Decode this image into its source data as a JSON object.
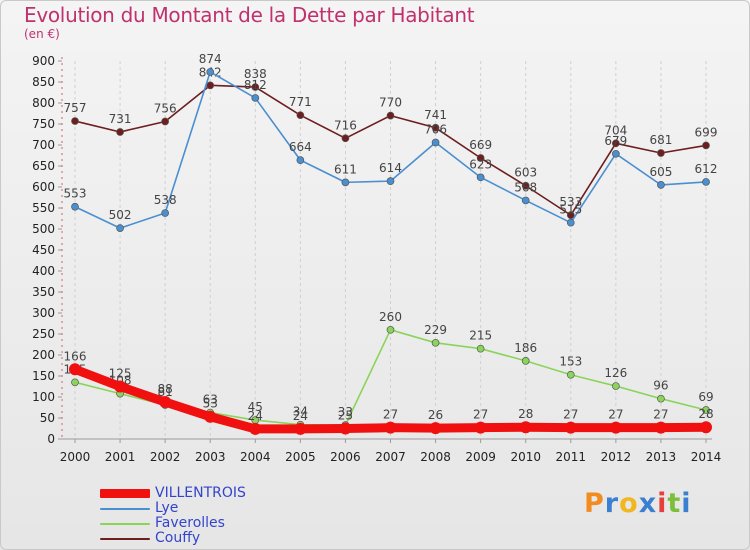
{
  "title": "Evolution du Montant de la Dette par Habitant",
  "subtitle": "(en €)",
  "logo": {
    "letters": [
      "P",
      "r",
      "o",
      "x",
      "i",
      "t",
      "i"
    ],
    "colors": [
      "#f28c1e",
      "#3a7fd0",
      "#f2b61e",
      "#3a7fd0",
      "#e5403a",
      "#7bbf3a",
      "#3a7fd0"
    ]
  },
  "chart_data": {
    "type": "line",
    "x": [
      "2000",
      "2001",
      "2002",
      "2003",
      "2004",
      "2005",
      "2006",
      "2007",
      "2008",
      "2009",
      "2010",
      "2011",
      "2012",
      "2013",
      "2014"
    ],
    "ylim": [
      0,
      900
    ],
    "yticks": [
      0,
      50,
      100,
      150,
      200,
      250,
      300,
      350,
      400,
      450,
      500,
      550,
      600,
      650,
      700,
      750,
      800,
      850,
      900
    ],
    "grid": "vertical",
    "legend_position": "bottom-left",
    "series": [
      {
        "name": "Couffy",
        "color": "#6e1e1e",
        "values": [
          757,
          731,
          756,
          842,
          838,
          771,
          716,
          770,
          741,
          669,
          603,
          533,
          704,
          681,
          699
        ]
      },
      {
        "name": "Lye",
        "color": "#4a8fd0",
        "values": [
          553,
          502,
          538,
          874,
          812,
          664,
          611,
          614,
          706,
          623,
          568,
          515,
          679,
          605,
          612
        ]
      },
      {
        "name": "Faverolles",
        "color": "#8ad45a",
        "values": [
          135,
          108,
          81,
          63,
          45,
          34,
          33,
          260,
          229,
          215,
          186,
          153,
          126,
          96,
          69
        ]
      },
      {
        "name": "VILLENTROIS",
        "color": "#f01010",
        "values": [
          166,
          125,
          88,
          53,
          24,
          24,
          25,
          27,
          26,
          27,
          28,
          27,
          27,
          27,
          28
        ]
      }
    ],
    "labels": [
      {
        "series": "Couffy",
        "text": [
          "757",
          "731",
          "756",
          "842",
          "838",
          "771",
          "716",
          "770",
          "741",
          "669",
          "603",
          "533",
          "704",
          "681",
          "699"
        ]
      },
      {
        "series": "Lye",
        "text": [
          "553",
          "502",
          "538",
          "874",
          "812",
          "664",
          "611",
          "614",
          "706",
          "623",
          "568",
          "515",
          "679",
          "605",
          "612"
        ]
      },
      {
        "series": "Faverolles",
        "text": [
          "135",
          "108",
          "81",
          "63",
          "45",
          "34",
          "33",
          "260",
          "229",
          "215",
          "186",
          "153",
          "126",
          "96",
          "69"
        ]
      },
      {
        "series": "VILLENTROIS",
        "text": [
          "166",
          "125",
          "88",
          "53",
          "24",
          "24",
          "25",
          "27",
          "26",
          "27",
          "28",
          "27",
          "27",
          "27",
          "28"
        ]
      }
    ],
    "legend": [
      "VILLENTROIS",
      "Lye",
      "Faverolles",
      "Couffy"
    ]
  }
}
